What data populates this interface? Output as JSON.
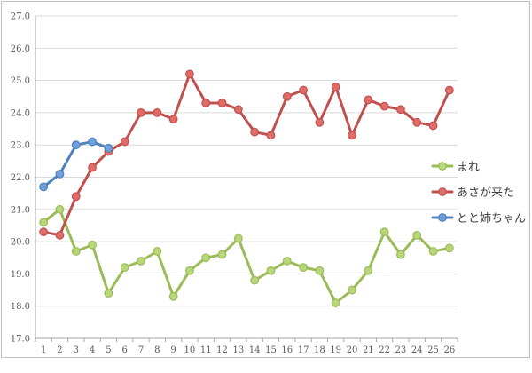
{
  "chart_data": {
    "type": "line",
    "x": [
      1,
      2,
      3,
      4,
      5,
      6,
      7,
      8,
      9,
      10,
      11,
      12,
      13,
      14,
      15,
      16,
      17,
      18,
      19,
      20,
      21,
      22,
      23,
      24,
      25,
      26
    ],
    "x_tick_labels": [
      "1",
      "2",
      "3",
      "4",
      "5",
      "6",
      "7",
      "8",
      "9",
      "10",
      "11",
      "12",
      "13",
      "14",
      "15",
      "16",
      "17",
      "18",
      "19",
      "20",
      "21",
      "22",
      "23",
      "24",
      "25",
      "26"
    ],
    "ylim": [
      17.0,
      27.0
    ],
    "y_ticks": [
      17.0,
      18.0,
      19.0,
      20.0,
      21.0,
      22.0,
      23.0,
      24.0,
      25.0,
      26.0,
      27.0
    ],
    "y_tick_labels": [
      "17.0",
      "18.0",
      "19.0",
      "20.0",
      "21.0",
      "22.0",
      "23.0",
      "24.0",
      "25.0",
      "26.0",
      "27.0"
    ],
    "grid": "horizontal",
    "legend_position": "right",
    "series": [
      {
        "name": "まれ",
        "color": "#9bbb59",
        "marker_color": "#b8d67a",
        "x": [
          1,
          2,
          3,
          4,
          5,
          6,
          7,
          8,
          9,
          10,
          11,
          12,
          13,
          14,
          15,
          16,
          17,
          18,
          19,
          20,
          21,
          22,
          23,
          24,
          25,
          26
        ],
        "values": [
          20.6,
          21.0,
          19.7,
          19.9,
          18.4,
          19.2,
          19.4,
          19.7,
          18.3,
          19.1,
          19.5,
          19.6,
          20.1,
          18.8,
          19.1,
          19.4,
          19.2,
          19.1,
          18.1,
          18.5,
          19.1,
          20.3,
          19.6,
          20.2,
          19.7,
          19.8
        ]
      },
      {
        "name": "あさが来た",
        "color": "#c0504d",
        "marker_color": "#e06c69",
        "x": [
          1,
          2,
          3,
          4,
          5,
          6,
          7,
          8,
          9,
          10,
          11,
          12,
          13,
          14,
          15,
          16,
          17,
          18,
          19,
          20,
          21,
          22,
          23,
          24,
          25,
          26
        ],
        "values": [
          20.3,
          20.2,
          21.4,
          22.3,
          22.8,
          23.1,
          24.0,
          24.0,
          23.8,
          25.2,
          24.3,
          24.3,
          24.1,
          23.4,
          23.3,
          24.5,
          24.7,
          23.7,
          24.8,
          23.3,
          24.4,
          24.2,
          24.1,
          23.7,
          23.6,
          24.7
        ]
      },
      {
        "name": "とと姉ちゃん",
        "color": "#4f81bd",
        "marker_color": "#6fa0dc",
        "x": [
          1,
          2,
          3,
          4,
          5
        ],
        "values": [
          21.7,
          22.1,
          23.0,
          23.1,
          22.9
        ]
      }
    ]
  }
}
